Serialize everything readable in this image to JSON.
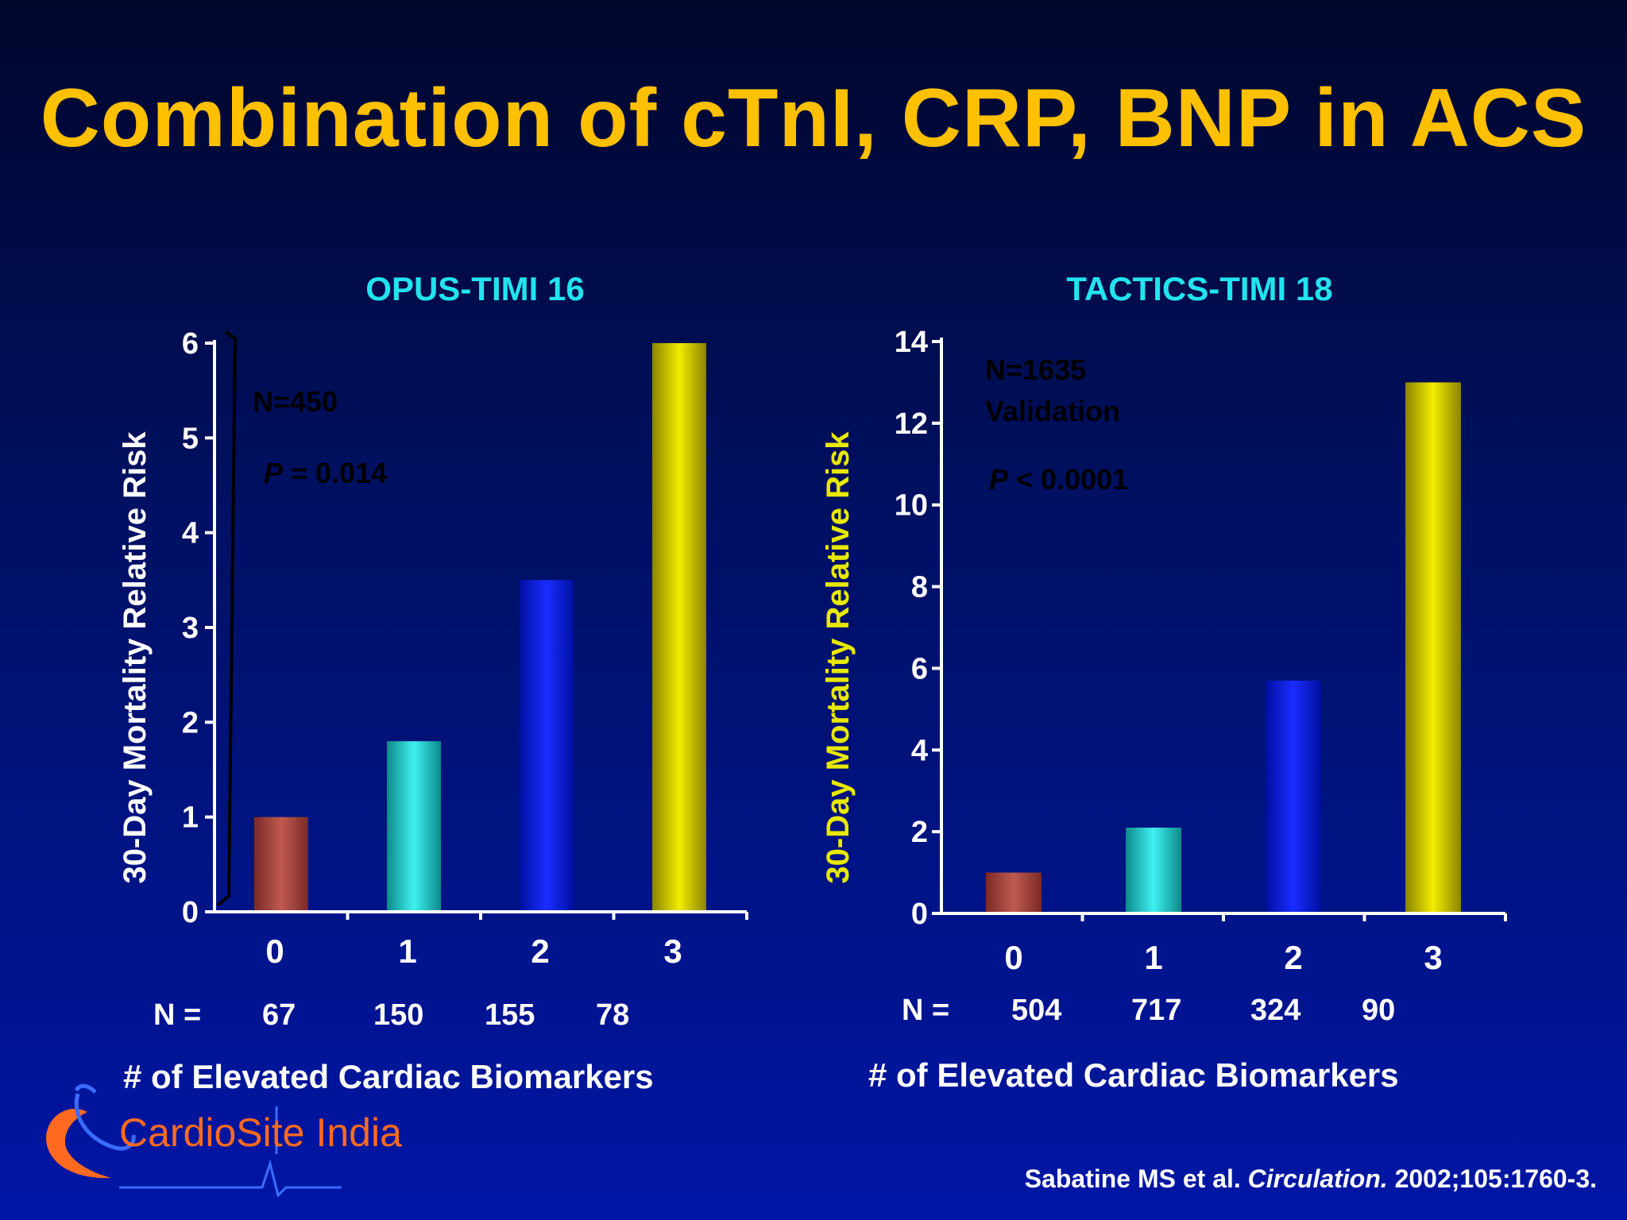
{
  "slide": {
    "title": "Combination of cTnI, CRP, BNP in ACS",
    "citation": {
      "authors": "Sabatine MS et al.",
      "journal": "Circulation.",
      "rest": "2002;105:1760-3."
    },
    "logo": {
      "word1": "CardioSite",
      "word2": "India"
    }
  },
  "chart_data": [
    {
      "type": "bar",
      "title": "OPUS-TIMI 16",
      "ylabel": "30-Day Mortality Relative Risk",
      "xlabel": "# of Elevated Cardiac Biomarkers",
      "categories": [
        "0",
        "1",
        "2",
        "3"
      ],
      "values": [
        1,
        1.8,
        3.5,
        6
      ],
      "n_prefix": "N =",
      "n_counts": [
        "67",
        "150",
        "155",
        "78"
      ],
      "ylim": [
        0,
        6
      ],
      "yticks": [
        0,
        1,
        2,
        3,
        4,
        5,
        6
      ],
      "annotations": {
        "line1": "N=450",
        "p_symbol": "P",
        "p_value": "= 0.014"
      },
      "colors": {
        "bars": [
          "#a0403a",
          "#20c8c8",
          "#1818d8",
          "#d8d000"
        ],
        "ylabel": "#ffffff"
      }
    },
    {
      "type": "bar",
      "title": "TACTICS-TIMI 18",
      "ylabel": "30-Day Mortality Relative Risk",
      "xlabel": "# of Elevated Cardiac Biomarkers",
      "categories": [
        "0",
        "1",
        "2",
        "3"
      ],
      "values": [
        1,
        2.1,
        5.7,
        13
      ],
      "n_prefix": "N =",
      "n_counts": [
        "504",
        "717",
        "324",
        "90"
      ],
      "ylim": [
        0,
        14
      ],
      "yticks": [
        0,
        2,
        4,
        6,
        8,
        10,
        12,
        14
      ],
      "annotations": {
        "line1": "N=1635",
        "line2": "Validation",
        "p_symbol": "P",
        "p_value": "< 0.0001"
      },
      "colors": {
        "bars": [
          "#a0403a",
          "#20c8c8",
          "#1818d8",
          "#d8d000"
        ],
        "ylabel": "#e8e800"
      }
    }
  ]
}
